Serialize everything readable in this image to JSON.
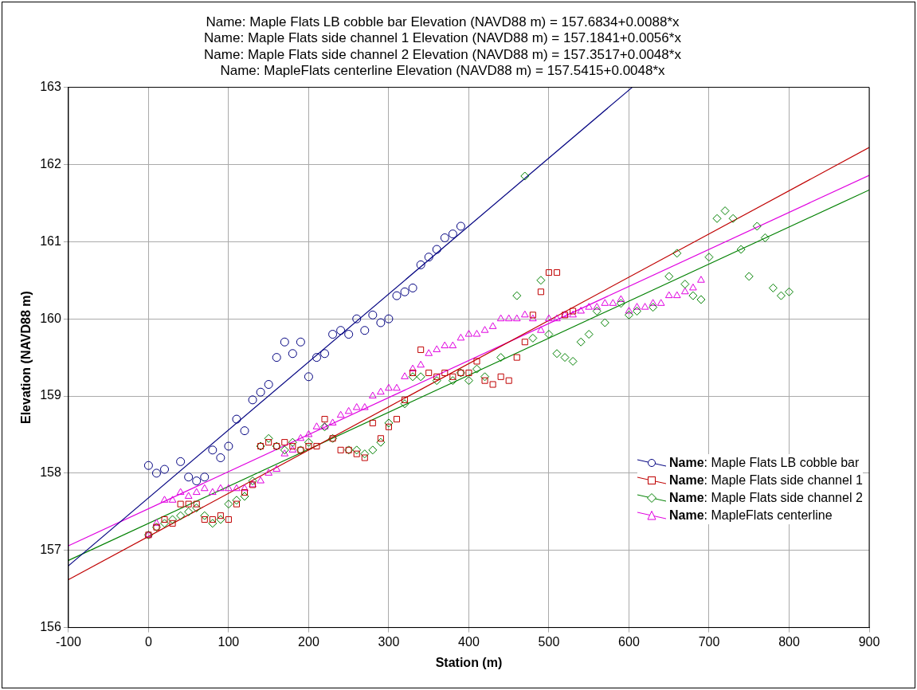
{
  "chart_data": {
    "type": "scatter",
    "title": [
      "Name: Maple Flats LB cobble bar Elevation (NAVD88 m) = 157.6834+0.0088*x",
      "Name: Maple Flats side channel 1 Elevation (NAVD88 m) = 157.1841+0.0056*x",
      "Name: Maple Flats side channel 2 Elevation (NAVD88 m) = 157.3517+0.0048*x",
      "Name: MapleFlats centerline Elevation (NAVD88 m) = 157.5415+0.0048*x"
    ],
    "xlabel": "Station (m)",
    "ylabel": "Elevation (NAVD88 m)",
    "xlim": [
      -100,
      900
    ],
    "xticks": [
      -100,
      0,
      100,
      200,
      300,
      400,
      500,
      600,
      700,
      800,
      900
    ],
    "ylim": [
      156,
      163
    ],
    "yticks": [
      156,
      157,
      158,
      159,
      160,
      161,
      162,
      163
    ],
    "grid": true,
    "legend": "bottom right",
    "series": [
      {
        "name": "Name: Maple Flats LB cobble bar",
        "marker": "circle",
        "color": "#000080",
        "x": [
          0,
          10,
          20,
          40,
          50,
          60,
          70,
          80,
          90,
          100,
          110,
          120,
          130,
          140,
          150,
          160,
          170,
          180,
          190,
          200,
          210,
          220,
          230,
          240,
          250,
          260,
          270,
          280,
          290,
          300,
          310,
          320,
          330,
          340,
          350,
          360,
          370,
          380,
          390
        ],
        "values": [
          158.1,
          158.0,
          158.05,
          158.15,
          157.95,
          157.9,
          157.95,
          158.3,
          158.2,
          158.35,
          158.7,
          158.55,
          158.95,
          159.05,
          159.15,
          159.5,
          159.7,
          159.55,
          159.7,
          159.25,
          159.5,
          159.55,
          159.8,
          159.85,
          159.8,
          160.0,
          159.85,
          160.05,
          159.95,
          160.0,
          160.3,
          160.35,
          160.4,
          160.7,
          160.8,
          160.9,
          161.05,
          161.1,
          161.2
        ]
      },
      {
        "name": "Name: Maple Flats side channel 1",
        "marker": "square",
        "color": "#c00000",
        "x": [
          0,
          10,
          20,
          30,
          40,
          50,
          60,
          70,
          80,
          90,
          100,
          110,
          120,
          130,
          140,
          150,
          160,
          170,
          180,
          190,
          200,
          210,
          220,
          230,
          240,
          250,
          260,
          270,
          280,
          290,
          300,
          310,
          320,
          330,
          340,
          350,
          360,
          370,
          380,
          390,
          400,
          410,
          420,
          430,
          440,
          450,
          460,
          470,
          480,
          490,
          500,
          510,
          520,
          530
        ],
        "values": [
          157.2,
          157.3,
          157.4,
          157.35,
          157.6,
          157.6,
          157.6,
          157.4,
          157.4,
          157.45,
          157.4,
          157.6,
          157.75,
          157.85,
          158.35,
          158.4,
          158.35,
          158.4,
          158.35,
          158.3,
          158.35,
          158.35,
          158.7,
          158.45,
          158.3,
          158.3,
          158.25,
          158.2,
          158.65,
          158.45,
          158.6,
          158.7,
          158.95,
          159.3,
          159.6,
          159.3,
          159.25,
          159.3,
          159.25,
          159.3,
          159.3,
          159.45,
          159.2,
          159.15,
          159.25,
          159.2,
          159.5,
          159.7,
          160.05,
          160.35,
          160.6,
          160.6,
          160.05,
          160.1
        ]
      },
      {
        "name": "Name: Maple Flats side channel 2",
        "marker": "diamond",
        "color": "#008000",
        "x": [
          0,
          10,
          20,
          30,
          40,
          50,
          60,
          70,
          80,
          90,
          100,
          110,
          120,
          130,
          140,
          150,
          160,
          170,
          180,
          190,
          200,
          220,
          230,
          250,
          260,
          270,
          280,
          290,
          300,
          320,
          330,
          340,
          360,
          380,
          390,
          400,
          410,
          420,
          440,
          460,
          470,
          480,
          490,
          500,
          510,
          520,
          530,
          540,
          550,
          560,
          570,
          590,
          600,
          610,
          630,
          650,
          660,
          670,
          680,
          690,
          700,
          710,
          720,
          730,
          740,
          750,
          760,
          770,
          780,
          790,
          800
        ],
        "values": [
          157.2,
          157.3,
          157.35,
          157.4,
          157.45,
          157.5,
          157.55,
          157.45,
          157.35,
          157.4,
          157.6,
          157.65,
          157.7,
          157.9,
          158.35,
          158.45,
          158.35,
          158.3,
          158.4,
          158.3,
          158.4,
          158.6,
          158.45,
          158.3,
          158.3,
          158.25,
          158.3,
          158.4,
          158.65,
          158.9,
          159.25,
          159.25,
          159.2,
          159.2,
          159.3,
          159.2,
          159.35,
          159.25,
          159.5,
          160.3,
          161.85,
          159.75,
          160.5,
          159.8,
          159.55,
          159.5,
          159.45,
          159.7,
          159.8,
          160.1,
          159.95,
          160.2,
          160.05,
          160.1,
          160.15,
          160.55,
          160.85,
          160.45,
          160.3,
          160.25,
          160.8,
          161.3,
          161.4,
          161.3,
          160.9,
          160.55,
          161.2,
          161.05,
          160.4,
          160.3,
          160.35
        ]
      },
      {
        "name": "Name: MapleFlats centerline",
        "marker": "triangle",
        "color": "#e000e0",
        "x": [
          0,
          10,
          20,
          30,
          40,
          50,
          60,
          70,
          80,
          90,
          100,
          110,
          120,
          130,
          140,
          150,
          160,
          170,
          180,
          190,
          200,
          210,
          220,
          230,
          240,
          250,
          260,
          270,
          280,
          290,
          300,
          310,
          320,
          330,
          340,
          350,
          360,
          370,
          380,
          390,
          400,
          410,
          420,
          430,
          440,
          450,
          460,
          470,
          480,
          490,
          500,
          510,
          520,
          530,
          540,
          550,
          560,
          570,
          580,
          590,
          600,
          610,
          620,
          630,
          640,
          650,
          660,
          670,
          680,
          690
        ],
        "values": [
          157.2,
          157.35,
          157.65,
          157.65,
          157.75,
          157.7,
          157.75,
          157.8,
          157.75,
          157.8,
          157.8,
          157.8,
          157.8,
          157.85,
          157.9,
          158.0,
          158.05,
          158.25,
          158.3,
          158.45,
          158.5,
          158.6,
          158.6,
          158.65,
          158.75,
          158.8,
          158.85,
          158.85,
          159.0,
          159.05,
          159.1,
          159.1,
          159.25,
          159.35,
          159.4,
          159.55,
          159.6,
          159.65,
          159.65,
          159.75,
          159.8,
          159.8,
          159.85,
          159.9,
          160.0,
          160.0,
          160.0,
          160.05,
          160.0,
          159.85,
          160.0,
          160.0,
          160.05,
          160.05,
          160.1,
          160.15,
          160.15,
          160.2,
          160.2,
          160.25,
          160.1,
          160.15,
          160.15,
          160.2,
          160.2,
          160.3,
          160.3,
          160.35,
          160.4,
          160.5
        ]
      },
      {
        "type": "line",
        "marker": "none",
        "color": "#000080",
        "x": [
          -100,
          604
        ],
        "values": [
          156.8,
          163.0
        ]
      },
      {
        "type": "line",
        "marker": "none",
        "color": "#c00000",
        "x": [
          -100,
          900
        ],
        "values": [
          156.62,
          162.22
        ]
      },
      {
        "type": "line",
        "marker": "none",
        "color": "#008000",
        "x": [
          -100,
          900
        ],
        "values": [
          156.87,
          161.67
        ]
      },
      {
        "type": "line",
        "marker": "none",
        "color": "#e000e0",
        "x": [
          -100,
          900
        ],
        "values": [
          157.06,
          161.86
        ]
      }
    ]
  }
}
